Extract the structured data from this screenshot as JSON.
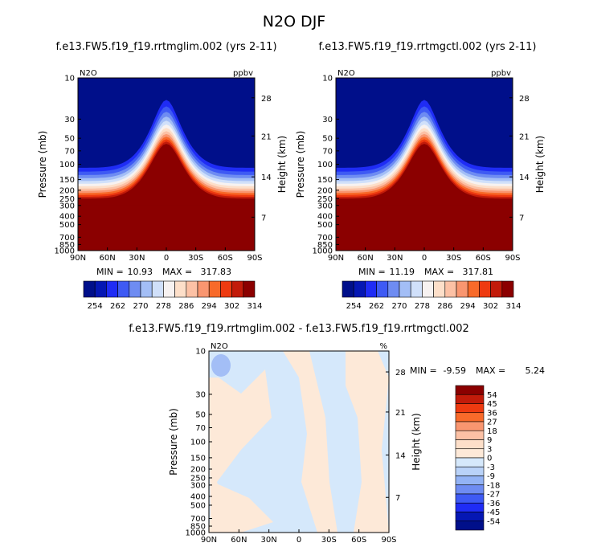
{
  "figure": {
    "title": "N2O DJF",
    "diff_title": "f.e13.FW5.f19_f19.rrtmglim.002 - f.e13.FW5.f19_f19.rrtmgctl.002"
  },
  "colors": {
    "dark_blue": "#000f8a",
    "bright_blue": "#1f2cf5",
    "light_blue": "#d5e8fb",
    "white": "#ffffff",
    "light_peach": "#fde9d8",
    "orange": "#f86a2a",
    "red": "#ee3a10",
    "dark_red": "#8b0000"
  },
  "chart_data": [
    {
      "type": "heatmap",
      "id": "panel-left",
      "title": "f.e13.FW5.f19_f19.rrtmglim.002 (yrs 2-11)",
      "field_label": "N2O",
      "units": "ppbv",
      "xlabel": "",
      "ylabel": "Pressure (mb)",
      "ylabel_right": "Height (km)",
      "x_ticks": [
        "90N",
        "60N",
        "30N",
        "0",
        "30S",
        "60S",
        "90S"
      ],
      "y_ticks": [
        "10",
        "30",
        "50",
        "70",
        "100",
        "150",
        "200",
        "250",
        "300",
        "400",
        "500",
        "700",
        "850",
        "1000"
      ],
      "y_right_ticks": [
        "28",
        "21",
        "14",
        "7"
      ],
      "min_label": "MIN =",
      "min_value": "10.93",
      "max_label": "MAX =",
      "max_value": "317.83",
      "colorbar_labels": [
        "254",
        "262",
        "270",
        "278",
        "286",
        "294",
        "302",
        "314"
      ],
      "colorbar_colors": [
        "#000f8a",
        "#0517b4",
        "#1f2cf5",
        "#3e5af4",
        "#6e8cf2",
        "#a3bef6",
        "#d0e0fa",
        "#f7f2f1",
        "#fddfc9",
        "#fcc1a5",
        "#f99670",
        "#f86a2a",
        "#ee3a10",
        "#c21b0a",
        "#8b0000"
      ],
      "profile_note": "tropical peak near 0 latitude around 15 mb; high values (>314) below ~300 mb"
    },
    {
      "type": "heatmap",
      "id": "panel-right",
      "title": "f.e13.FW5.f19_f19.rrtmgctl.002 (yrs 2-11)",
      "field_label": "N2O",
      "units": "ppbv",
      "xlabel": "",
      "ylabel": "Pressure (mb)",
      "ylabel_right": "Height (km)",
      "x_ticks": [
        "90N",
        "60N",
        "30N",
        "0",
        "30S",
        "60S",
        "90S"
      ],
      "y_ticks": [
        "10",
        "30",
        "50",
        "70",
        "100",
        "150",
        "200",
        "250",
        "300",
        "400",
        "500",
        "700",
        "850",
        "1000"
      ],
      "y_right_ticks": [
        "28",
        "21",
        "14",
        "7"
      ],
      "min_label": "MIN =",
      "min_value": "11.19",
      "max_label": "MAX =",
      "max_value": "317.81",
      "colorbar_labels": [
        "254",
        "262",
        "270",
        "278",
        "286",
        "294",
        "302",
        "314"
      ],
      "colorbar_colors": [
        "#000f8a",
        "#0517b4",
        "#1f2cf5",
        "#3e5af4",
        "#6e8cf2",
        "#a3bef6",
        "#d0e0fa",
        "#f7f2f1",
        "#fddfc9",
        "#fcc1a5",
        "#f99670",
        "#f86a2a",
        "#ee3a10",
        "#c21b0a",
        "#8b0000"
      ]
    },
    {
      "type": "heatmap",
      "id": "panel-diff",
      "field_label": "N2O",
      "units": "%",
      "xlabel": "",
      "ylabel": "Pressure (mb)",
      "ylabel_right": "Height (km)",
      "x_ticks": [
        "90N",
        "60N",
        "30N",
        "0",
        "30S",
        "60S",
        "90S"
      ],
      "y_ticks": [
        "10",
        "30",
        "50",
        "70",
        "100",
        "150",
        "200",
        "250",
        "300",
        "400",
        "500",
        "700",
        "850",
        "1000"
      ],
      "y_right_ticks": [
        "28",
        "21",
        "14",
        "7"
      ],
      "min_label": "MIN =",
      "min_value": "-9.59",
      "max_label": "MAX =",
      "max_value": "5.24",
      "colorbar_labels": [
        "54",
        "45",
        "36",
        "27",
        "18",
        "9",
        "3",
        "0",
        "-3",
        "-9",
        "-18",
        "-27",
        "-36",
        "-45",
        "-54"
      ],
      "colorbar_colors": [
        "#8b0000",
        "#c21b0a",
        "#ee3a10",
        "#f86a2a",
        "#f99670",
        "#fcc1a5",
        "#fddfc9",
        "#fde9d8",
        "#d5e8fb",
        "#b9d2f8",
        "#93b3f5",
        "#6e8cf2",
        "#3e5af4",
        "#1f2cf5",
        "#0517b4",
        "#000f8a"
      ]
    }
  ]
}
